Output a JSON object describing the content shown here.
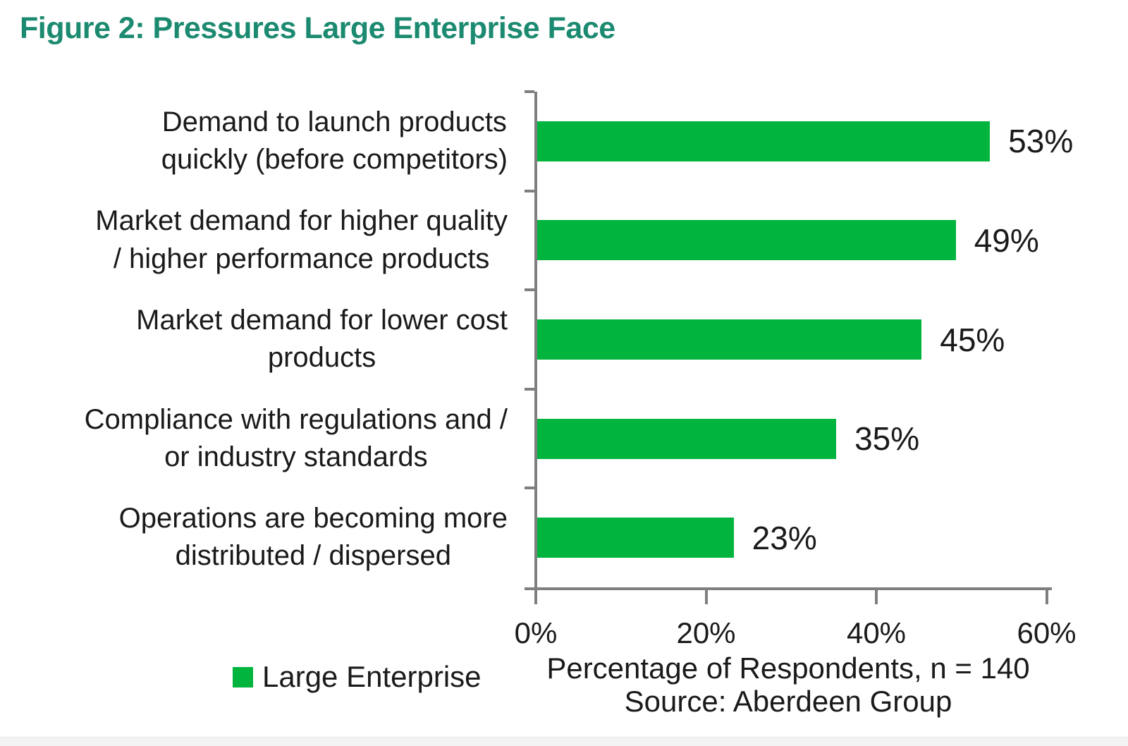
{
  "title": {
    "text": "Figure 2: Pressures Large Enterprise Face",
    "color": "#1B8A70"
  },
  "chart_data": {
    "type": "bar",
    "orientation": "horizontal",
    "title": "Figure 2: Pressures Large Enterprise Face",
    "categories": [
      "Demand to launch products quickly (before competitors)",
      "Market demand for higher quality / higher performance products",
      "Market demand for lower cost products",
      "Compliance with regulations and / or industry standards",
      "Operations are becoming more distributed / dispersed"
    ],
    "values": [
      53,
      49,
      45,
      35,
      23
    ],
    "data_labels": [
      "53%",
      "49%",
      "45%",
      "35%",
      "23%"
    ],
    "x_ticks": [
      "0%",
      "20%",
      "40%",
      "60%"
    ],
    "xlim": [
      0,
      60
    ],
    "xlabel": "Percentage of Respondents, n = 140",
    "source": "Source: Aberdeen Group",
    "grid": false,
    "bar_color": "#00B43E",
    "axis_color": "#7F7F7F",
    "legend": {
      "position": "bottom-left",
      "entries": [
        {
          "label": "Large Enterprise",
          "color": "#00B43E"
        }
      ]
    }
  },
  "rows": [
    {
      "label": "Demand to launch products\nquickly (before competitors)",
      "value": 53,
      "display": "53%"
    },
    {
      "label": "Market demand for higher quality\n/ higher performance products",
      "value": 49,
      "display": "49%"
    },
    {
      "label": "Market demand for lower cost\nproducts",
      "value": 45,
      "display": "45%"
    },
    {
      "label": "Compliance with regulations and /\nor industry standards",
      "value": 35,
      "display": "35%"
    },
    {
      "label": "Operations are becoming more\ndistributed / dispersed",
      "value": 23,
      "display": "23%"
    }
  ],
  "axis": {
    "tick_0": "0%",
    "tick_20": "20%",
    "tick_40": "40%",
    "tick_60": "60%",
    "caption_line1": "Percentage of Respondents, n = 140",
    "caption_line2": "Source: Aberdeen Group"
  },
  "legend": {
    "label": "Large Enterprise"
  }
}
